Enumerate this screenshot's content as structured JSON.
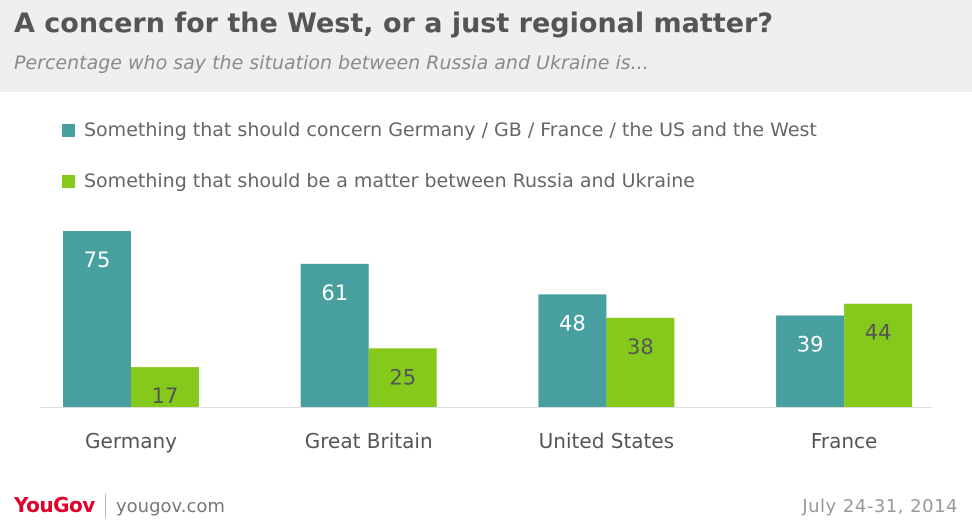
{
  "header": {
    "title": "A concern for the West, or a just regional matter?",
    "subtitle": "Percentage who say the situation between Russia and Ukraine is..."
  },
  "colors": {
    "concern": "#479f9f",
    "matter": "#85c91d",
    "header_bg": "#efefef",
    "brand": "#e0002a"
  },
  "chart_data": {
    "type": "bar",
    "title": "A concern for the West, or a just regional matter?",
    "subtitle": "Percentage who say the situation between Russia and Ukraine is...",
    "categories": [
      "Germany",
      "Great Britain",
      "United States",
      "France"
    ],
    "series": [
      {
        "name": "Something that should concern Germany / GB / France / the US  and the West",
        "values": [
          75,
          61,
          48,
          39
        ]
      },
      {
        "name": "Something that should be a matter between Russia and Ukraine",
        "values": [
          17,
          25,
          38,
          44
        ]
      }
    ],
    "xlabel": "",
    "ylabel": "",
    "ylim": [
      0,
      75
    ],
    "grid": false,
    "legend_position": "top-left",
    "data_labels": true
  },
  "footer": {
    "brand": "YouGov",
    "site": "yougov.com",
    "date": "July 24-31, 2014"
  }
}
